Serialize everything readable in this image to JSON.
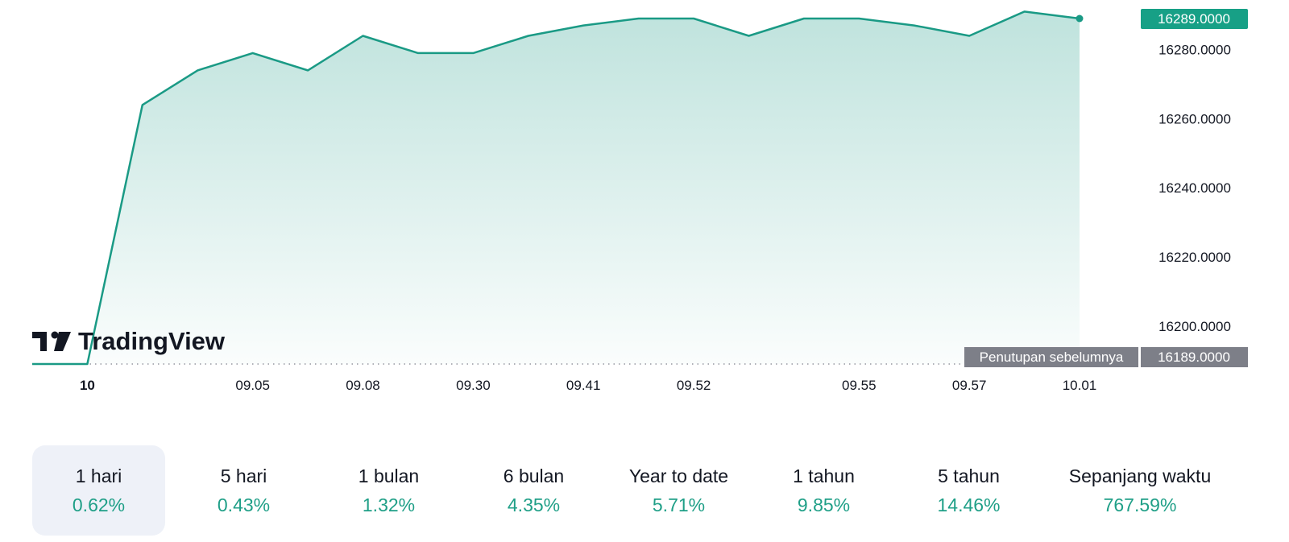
{
  "brand": {
    "logo_text": "TradingView",
    "logo_icon": "tradingview-logo-icon"
  },
  "colors": {
    "line": "#1a9a85",
    "fill": "#1a9a85",
    "tag_current": "#17a086",
    "tag_prev": "#7d7f88",
    "positive": "#1f9f87"
  },
  "chart_data": {
    "type": "area",
    "x_labels": [
      "10",
      "09.05",
      "09.08",
      "09.30",
      "09.41",
      "09.52",
      "09.55",
      "09.57",
      "10.01"
    ],
    "x_labels_bold": [
      "10"
    ],
    "y_ticks": [
      "16280.0000",
      "16260.0000",
      "16240.0000",
      "16220.0000",
      "16200.0000"
    ],
    "ylim": [
      16189,
      16289
    ],
    "values": [
      16189,
      16189,
      16264,
      16274,
      16279,
      16274,
      16284,
      16279,
      16279,
      16284,
      16287,
      16289,
      16289,
      16284,
      16289,
      16289,
      16287,
      16284,
      16291,
      16289
    ],
    "current_value": "16289.0000",
    "previous_close": {
      "label": "Penutupan sebelumnya",
      "value": "16189.0000"
    }
  },
  "periods": [
    {
      "label": "1 hari",
      "value": "0.62%",
      "active": true
    },
    {
      "label": "5 hari",
      "value": "0.43%"
    },
    {
      "label": "1 bulan",
      "value": "1.32%"
    },
    {
      "label": "6 bulan",
      "value": "4.35%"
    },
    {
      "label": "Year to date",
      "value": "5.71%"
    },
    {
      "label": "1 tahun",
      "value": "9.85%"
    },
    {
      "label": "5 tahun",
      "value": "14.46%"
    },
    {
      "label": "Sepanjang waktu",
      "value": "767.59%"
    }
  ]
}
